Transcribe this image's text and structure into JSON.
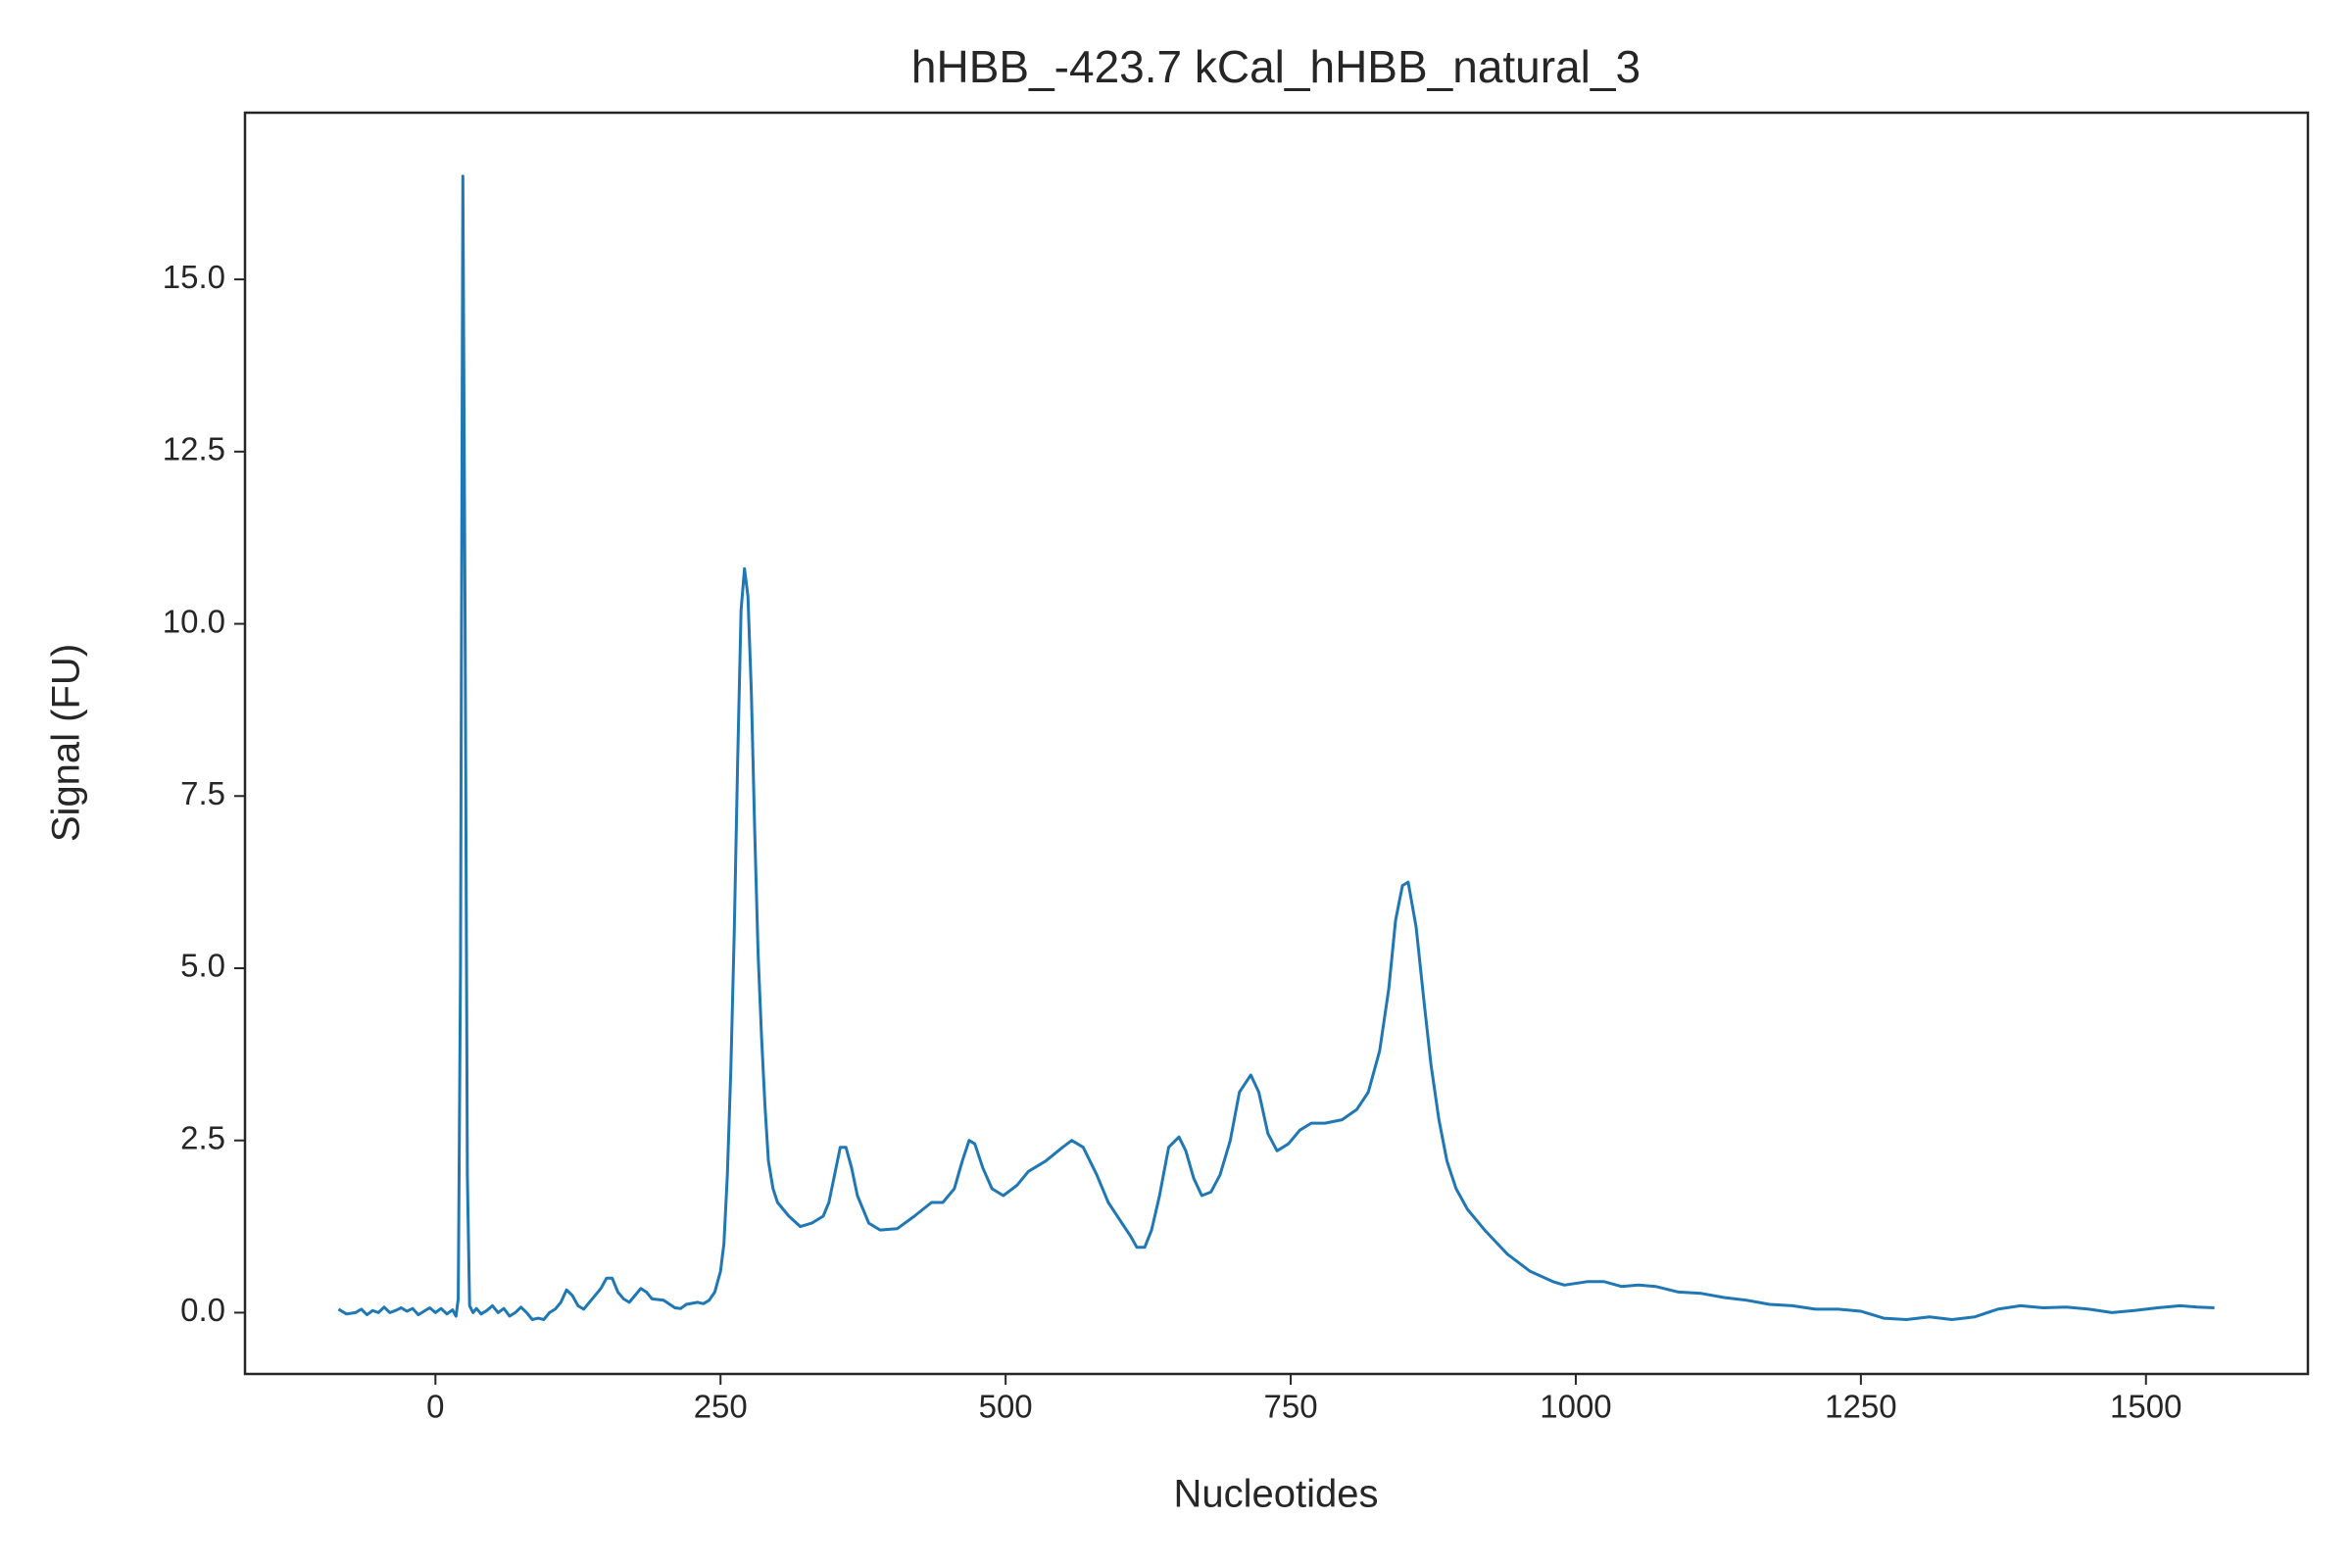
{
  "chart_data": {
    "type": "line",
    "title": "hHBB_-423.7 kCal_hHBB_natural_3",
    "x_label": "Nucleotides",
    "y_label": "Signal (FU)",
    "xlim": [
      -167,
      1642
    ],
    "ylim": [
      -0.89,
      17.42
    ],
    "xticks": [
      0,
      250,
      500,
      750,
      1000,
      1250,
      1500
    ],
    "yticks": [
      {
        "value": 0,
        "label": "0.0"
      },
      2.5,
      {
        "value": 5,
        "label": "5.0"
      },
      7.5,
      {
        "value": 10,
        "label": "10.0"
      },
      12.5,
      {
        "value": 15,
        "label": "15.0"
      }
    ],
    "series": [
      {
        "color": "#1f77b4",
        "x": [
          -85,
          -78,
          -70,
          -65,
          -60,
          -55,
          -50,
          -45,
          -40,
          -35,
          -30,
          -25,
          -20,
          -15,
          -10,
          -5,
          0,
          5,
          10,
          15,
          18,
          20,
          22,
          24,
          26,
          28,
          30,
          33,
          36,
          40,
          45,
          50,
          55,
          60,
          65,
          70,
          75,
          80,
          85,
          90,
          95,
          100,
          105,
          110,
          115,
          120,
          125,
          130,
          135,
          140,
          145,
          150,
          155,
          160,
          165,
          170,
          175,
          180,
          185,
          190,
          200,
          210,
          215,
          220,
          230,
          235,
          240,
          245,
          250,
          253,
          256,
          259,
          262,
          265,
          268,
          271,
          274,
          277,
          280,
          283,
          286,
          289,
          292,
          296,
          300,
          310,
          320,
          330,
          340,
          345,
          350,
          355,
          360,
          365,
          370,
          380,
          390,
          405,
          420,
          435,
          445,
          455,
          462,
          468,
          473,
          480,
          488,
          498,
          510,
          520,
          535,
          550,
          558,
          568,
          580,
          590,
          600,
          610,
          615,
          622,
          628,
          635,
          643,
          652,
          658,
          665,
          672,
          680,
          688,
          697,
          705,
          715,
          722,
          730,
          738,
          748,
          758,
          768,
          780,
          795,
          808,
          818,
          828,
          836,
          842,
          848,
          853,
          860,
          867,
          873,
          880,
          887,
          895,
          905,
          920,
          940,
          960,
          980,
          990,
          1010,
          1025,
          1040,
          1055,
          1070,
          1090,
          1110,
          1130,
          1150,
          1170,
          1190,
          1210,
          1230,
          1250,
          1270,
          1290,
          1310,
          1330,
          1350,
          1370,
          1390,
          1410,
          1430,
          1450,
          1470,
          1490,
          1510,
          1530,
          1545,
          1560
        ],
        "values": [
          0.05,
          -0.02,
          0.0,
          0.05,
          -0.03,
          0.03,
          0.0,
          0.08,
          0.0,
          0.03,
          0.07,
          0.02,
          0.06,
          -0.03,
          0.02,
          0.07,
          0.0,
          0.06,
          -0.02,
          0.04,
          -0.05,
          0.2,
          5,
          16.5,
          10,
          2,
          0.1,
          0.0,
          0.06,
          -0.02,
          0.03,
          0.1,
          0.0,
          0.06,
          -0.05,
          0.0,
          0.08,
          0.0,
          -0.1,
          -0.08,
          -0.1,
          0.0,
          0.05,
          0.15,
          0.33,
          0.25,
          0.1,
          0.05,
          0.15,
          0.25,
          0.35,
          0.5,
          0.5,
          0.3,
          0.2,
          0.15,
          0.25,
          0.35,
          0.3,
          0.2,
          0.18,
          0.07,
          0.06,
          0.12,
          0.15,
          0.13,
          0.18,
          0.3,
          0.6,
          1.0,
          2.0,
          3.5,
          5.5,
          8.0,
          10.2,
          10.8,
          10.4,
          9.0,
          7.0,
          5.2,
          4.0,
          3.0,
          2.2,
          1.8,
          1.6,
          1.4,
          1.25,
          1.3,
          1.4,
          1.6,
          2.0,
          2.4,
          2.4,
          2.1,
          1.7,
          1.3,
          1.2,
          1.22,
          1.4,
          1.6,
          1.6,
          1.8,
          2.2,
          2.5,
          2.45,
          2.1,
          1.8,
          1.7,
          1.85,
          2.05,
          2.2,
          2.4,
          2.5,
          2.4,
          2.0,
          1.6,
          1.35,
          1.1,
          0.95,
          0.95,
          1.2,
          1.7,
          2.4,
          2.55,
          2.35,
          1.95,
          1.7,
          1.75,
          2.0,
          2.5,
          3.2,
          3.45,
          3.2,
          2.6,
          2.35,
          2.45,
          2.65,
          2.75,
          2.75,
          2.8,
          2.95,
          3.2,
          3.8,
          4.7,
          5.7,
          6.2,
          6.25,
          5.6,
          4.5,
          3.6,
          2.8,
          2.2,
          1.8,
          1.5,
          1.2,
          0.85,
          0.6,
          0.45,
          0.4,
          0.45,
          0.45,
          0.38,
          0.4,
          0.38,
          0.3,
          0.28,
          0.22,
          0.18,
          0.12,
          0.1,
          0.05,
          0.05,
          0.02,
          -0.08,
          -0.1,
          -0.06,
          -0.1,
          -0.06,
          0.05,
          0.1,
          0.07,
          0.08,
          0.05,
          0.0,
          0.03,
          0.07,
          0.1,
          0.08,
          0.07
        ]
      }
    ]
  }
}
